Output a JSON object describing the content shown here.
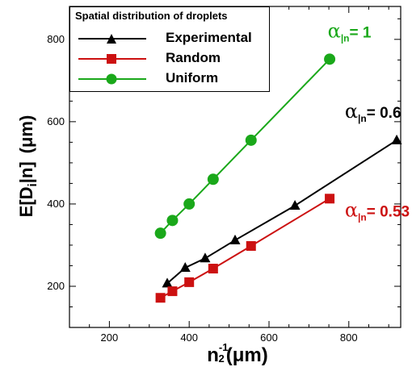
{
  "chart_data": {
    "type": "line",
    "xlabel_main": "n",
    "xlabel_exp": "-1",
    "xlabel_exp_under": "2",
    "xlabel_unit": "(μm)",
    "ylabel_main": "E[D",
    "ylabel_sub": "i",
    "ylabel_rest": "|n]",
    "ylabel_unit": "(μm)",
    "xlim": [
      100,
      930
    ],
    "ylim": [
      100,
      880
    ],
    "xticks": [
      200,
      400,
      600,
      800
    ],
    "yticks": [
      200,
      400,
      600,
      800
    ],
    "grid": false,
    "legend_title": "Spatial distribution of droplets",
    "legend_position": "top-left",
    "series": [
      {
        "name": "Experimental",
        "marker": "triangle",
        "color": "#000000",
        "x": [
          345,
          390,
          440,
          515,
          665,
          920
        ],
        "y": [
          207,
          245,
          268,
          312,
          396,
          555
        ]
      },
      {
        "name": "Random",
        "marker": "square",
        "color": "#cc1111",
        "x": [
          328,
          358,
          400,
          460,
          555,
          752
        ],
        "y": [
          172,
          188,
          210,
          243,
          298,
          413
        ]
      },
      {
        "name": "Uniform",
        "marker": "circle",
        "color": "#1aa81a",
        "x": [
          328,
          358,
          400,
          460,
          555,
          752
        ],
        "y": [
          329,
          360,
          400,
          460,
          555,
          752
        ]
      }
    ],
    "annotations": [
      {
        "symbol": "α",
        "sub": "|n",
        "text": "= 1",
        "color": "#1aa81a",
        "x": 747,
        "y": 805
      },
      {
        "symbol": "α",
        "sub": "|n",
        "text": "= 0.6",
        "color": "#000000",
        "x": 790,
        "y": 610
      },
      {
        "symbol": "α",
        "sub": "|n",
        "text": "= 0.53",
        "color": "#cc1111",
        "x": 790,
        "y": 369
      }
    ]
  }
}
